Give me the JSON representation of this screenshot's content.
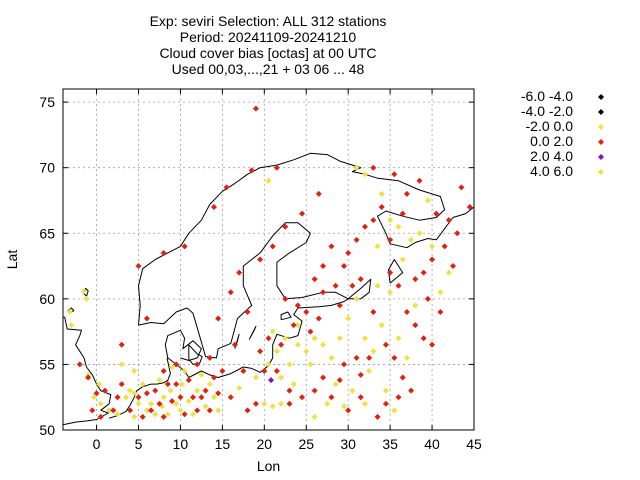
{
  "title_lines": [
    "Exp: seviri   Selection: ALL     312 stations",
    "Period: 20241109-20241210",
    "Cloud cover bias [octas] at  00 UTC",
    "Used 00,03,...,21 + 03 06 ... 48"
  ],
  "chart_data": {
    "type": "scatter",
    "xlabel": "Lon",
    "ylabel": "Lat",
    "xlim": [
      -4,
      45
    ],
    "ylim": [
      50,
      76
    ],
    "x_ticks": [
      0,
      5,
      10,
      15,
      20,
      25,
      30,
      35,
      40,
      45
    ],
    "y_ticks": [
      50,
      55,
      60,
      65,
      70,
      75
    ],
    "grid": true,
    "legend_placement": "right",
    "legend": [
      {
        "label": "-6.0 -4.0",
        "color": "#000000"
      },
      {
        "label": "-4.0 -2.0",
        "color": "#000000"
      },
      {
        "label": "-2.0 0.0",
        "color": "#f0e040"
      },
      {
        "label": "0.0 2.0",
        "color": "#e02010"
      },
      {
        "label": "2.0 4.0",
        "color": "#8010c0"
      },
      {
        "label": "4.0 6.0",
        "color": "#f0e040"
      }
    ],
    "series": [
      {
        "class": 2,
        "points": [
          [
            -3.2,
            59.0
          ],
          [
            -3.0,
            58.0
          ],
          [
            -1.5,
            60.6
          ],
          [
            -1.2,
            60.0
          ],
          [
            -1.0,
            54.2
          ],
          [
            -0.3,
            52.5
          ],
          [
            0.3,
            53.5
          ],
          [
            0.5,
            52.0
          ],
          [
            1.5,
            51.5
          ],
          [
            2.5,
            51.2
          ],
          [
            3.5,
            52.5
          ],
          [
            4.0,
            53.0
          ],
          [
            4.5,
            52.8
          ],
          [
            4.5,
            51.0
          ],
          [
            5.0,
            52.0
          ],
          [
            5.5,
            53.5
          ],
          [
            6.0,
            51.5
          ],
          [
            6.5,
            52.0
          ],
          [
            7.0,
            51.2
          ],
          [
            7.5,
            53.8
          ],
          [
            7.8,
            51.8
          ],
          [
            8.0,
            52.5
          ],
          [
            8.5,
            51.2
          ],
          [
            8.8,
            53.0
          ],
          [
            9.0,
            54.8
          ],
          [
            9.5,
            52.0
          ],
          [
            10.0,
            51.5
          ],
          [
            10.2,
            53.5
          ],
          [
            10.5,
            54.5
          ],
          [
            11.0,
            52.2
          ],
          [
            11.5,
            51.2
          ],
          [
            12.0,
            53.0
          ],
          [
            12.5,
            54.2
          ],
          [
            13.0,
            51.8
          ],
          [
            13.5,
            53.5
          ],
          [
            14.0,
            52.5
          ],
          [
            14.5,
            51.5
          ],
          [
            4.5,
            54.5
          ],
          [
            3.0,
            55.0
          ],
          [
            17.0,
            53.2
          ],
          [
            19.0,
            54.0
          ],
          [
            20.0,
            52.0
          ],
          [
            21.0,
            51.8
          ],
          [
            22.0,
            52.0
          ],
          [
            20.5,
            55.0
          ],
          [
            21.5,
            56.0
          ],
          [
            22.0,
            54.0
          ],
          [
            23.0,
            55.0
          ],
          [
            22.5,
            57.0
          ],
          [
            24.0,
            56.5
          ],
          [
            25.0,
            56.0
          ],
          [
            24.0,
            58.0
          ],
          [
            26.0,
            57.0
          ],
          [
            25.5,
            55.0
          ],
          [
            27.0,
            56.5
          ],
          [
            21.0,
            57.5
          ],
          [
            23.5,
            53.5
          ],
          [
            28.0,
            55.5
          ],
          [
            29.0,
            57.0
          ],
          [
            30.0,
            58.5
          ],
          [
            31.0,
            60.0
          ],
          [
            32.0,
            57.0
          ],
          [
            33.0,
            56.0
          ],
          [
            34.0,
            58.0
          ],
          [
            35.0,
            60.5
          ],
          [
            33.5,
            61.0
          ],
          [
            36.0,
            57.0
          ],
          [
            37.0,
            55.5
          ],
          [
            38.0,
            59.5
          ],
          [
            28.5,
            53.5
          ],
          [
            30.5,
            53.0
          ],
          [
            32.5,
            54.5
          ],
          [
            34.5,
            53.0
          ],
          [
            35.5,
            51.5
          ],
          [
            32.0,
            52.0
          ],
          [
            27.5,
            52.0
          ],
          [
            26.0,
            51.0
          ],
          [
            29.5,
            51.8
          ],
          [
            36.5,
            63.0
          ],
          [
            37.5,
            64.5
          ],
          [
            38.5,
            65.0
          ],
          [
            36.0,
            65.5
          ],
          [
            35.0,
            66.0
          ],
          [
            34.0,
            68.0
          ],
          [
            32.0,
            69.5
          ],
          [
            31.0,
            70.0
          ],
          [
            33.5,
            64.0
          ],
          [
            42.0,
            62.0
          ],
          [
            40.0,
            64.0
          ],
          [
            41.0,
            60.5
          ],
          [
            39.5,
            67.5
          ],
          [
            20.5,
            69.0
          ]
        ]
      },
      {
        "class": 3,
        "points": [
          [
            -0.5,
            51.5
          ],
          [
            0.0,
            52.8
          ],
          [
            -2.0,
            55.0
          ],
          [
            -1.0,
            54.0
          ],
          [
            0.5,
            51.0
          ],
          [
            1.0,
            53.0
          ],
          [
            2.0,
            51.5
          ],
          [
            2.5,
            52.5
          ],
          [
            3.0,
            53.5
          ],
          [
            4.0,
            51.5
          ],
          [
            5.0,
            52.5
          ],
          [
            5.5,
            51.0
          ],
          [
            6.0,
            52.8
          ],
          [
            6.5,
            51.5
          ],
          [
            7.0,
            53.0
          ],
          [
            7.5,
            52.0
          ],
          [
            8.0,
            51.0
          ],
          [
            8.5,
            53.5
          ],
          [
            9.0,
            52.2
          ],
          [
            9.5,
            53.5
          ],
          [
            10.0,
            52.5
          ],
          [
            10.5,
            51.2
          ],
          [
            11.0,
            53.8
          ],
          [
            11.5,
            52.5
          ],
          [
            12.0,
            51.5
          ],
          [
            12.5,
            52.5
          ],
          [
            13.0,
            53.0
          ],
          [
            13.5,
            51.5
          ],
          [
            14.0,
            54.0
          ],
          [
            14.5,
            52.8
          ],
          [
            8.0,
            54.5
          ],
          [
            9.5,
            55.0
          ],
          [
            12.0,
            55.0
          ],
          [
            3.0,
            56.5
          ],
          [
            6.0,
            58.5
          ],
          [
            5.0,
            62.5
          ],
          [
            8.0,
            63.5
          ],
          [
            10.5,
            64.0
          ],
          [
            14.0,
            67.0
          ],
          [
            15.5,
            68.5
          ],
          [
            18.5,
            69.8
          ],
          [
            19.0,
            74.5
          ],
          [
            21.5,
            70.0
          ],
          [
            18.0,
            59.0
          ],
          [
            16.5,
            56.5
          ],
          [
            13.5,
            55.5
          ],
          [
            15.0,
            54.5
          ],
          [
            17.5,
            54.5
          ],
          [
            16.0,
            52.5
          ],
          [
            18.0,
            51.5
          ],
          [
            19.0,
            52.0
          ],
          [
            24.0,
            59.5
          ],
          [
            22.5,
            60.0
          ],
          [
            25.0,
            59.0
          ],
          [
            27.0,
            60.5
          ],
          [
            28.5,
            61.0
          ],
          [
            29.5,
            62.5
          ],
          [
            30.0,
            63.5
          ],
          [
            31.0,
            64.5
          ],
          [
            28.0,
            64.0
          ],
          [
            27.0,
            62.5
          ],
          [
            26.0,
            61.5
          ],
          [
            32.0,
            65.5
          ],
          [
            33.0,
            66.0
          ],
          [
            34.0,
            67.0
          ],
          [
            35.0,
            62.0
          ],
          [
            36.0,
            61.0
          ],
          [
            37.0,
            59.0
          ],
          [
            38.0,
            58.0
          ],
          [
            39.0,
            57.0
          ],
          [
            40.0,
            56.5
          ],
          [
            26.5,
            58.5
          ],
          [
            25.5,
            57.5
          ],
          [
            29.0,
            59.5
          ],
          [
            30.5,
            61.0
          ],
          [
            31.5,
            61.5
          ],
          [
            33.0,
            59.0
          ],
          [
            34.5,
            56.5
          ],
          [
            35.5,
            55.5
          ],
          [
            36.5,
            54.0
          ],
          [
            37.5,
            53.0
          ],
          [
            31.0,
            55.5
          ],
          [
            29.5,
            55.0
          ],
          [
            27.0,
            54.0
          ],
          [
            26.0,
            53.0
          ],
          [
            24.5,
            52.5
          ],
          [
            23.0,
            53.0
          ],
          [
            21.5,
            54.5
          ],
          [
            20.0,
            54.5
          ],
          [
            30.0,
            51.5
          ],
          [
            31.5,
            52.5
          ],
          [
            33.5,
            51.0
          ],
          [
            34.5,
            52.0
          ],
          [
            36.0,
            52.5
          ],
          [
            33.0,
            70.0
          ],
          [
            35.5,
            69.5
          ],
          [
            37.0,
            68.0
          ],
          [
            38.5,
            69.0
          ],
          [
            40.5,
            66.5
          ],
          [
            42.0,
            66.0
          ],
          [
            43.0,
            65.0
          ],
          [
            43.5,
            68.5
          ],
          [
            44.5,
            67.0
          ],
          [
            41.5,
            64.0
          ],
          [
            40.0,
            63.0
          ],
          [
            39.0,
            62.0
          ],
          [
            42.5,
            62.5
          ],
          [
            41.0,
            59.0
          ],
          [
            39.5,
            60.0
          ],
          [
            38.0,
            61.5
          ],
          [
            36.5,
            66.5
          ],
          [
            35.0,
            64.5
          ],
          [
            26.5,
            68.0
          ],
          [
            24.5,
            66.5
          ],
          [
            22.5,
            65.5
          ],
          [
            21.0,
            64.0
          ],
          [
            19.5,
            63.0
          ],
          [
            17.0,
            62.0
          ],
          [
            16.0,
            60.5
          ],
          [
            14.5,
            58.5
          ],
          [
            23.5,
            58.0
          ],
          [
            22.0,
            56.5
          ],
          [
            20.5,
            57.0
          ],
          [
            19.5,
            56.0
          ],
          [
            23.0,
            52.0
          ],
          [
            28.0,
            52.5
          ],
          [
            29.0,
            53.8
          ],
          [
            31.5,
            54.2
          ],
          [
            32.5,
            55.5
          ]
        ]
      },
      {
        "class": 4,
        "points": [
          [
            20.8,
            53.8
          ]
        ]
      }
    ]
  }
}
